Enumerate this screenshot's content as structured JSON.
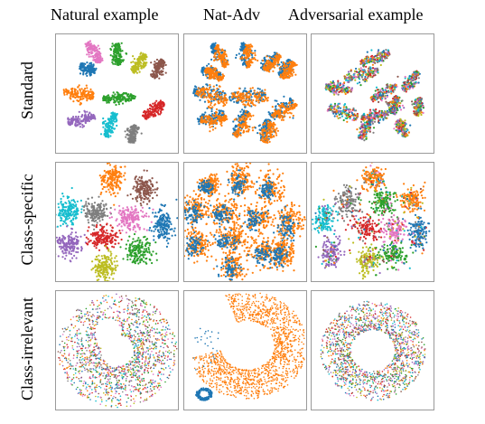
{
  "column_titles": [
    "Natural example",
    "Nat-Adv",
    "Adversarial example"
  ],
  "row_titles": [
    "Standard",
    "Class-specific",
    "Class-irrelevant"
  ],
  "colors": {
    "palette": [
      "#1f77b4",
      "#ff7f0e",
      "#2ca02c",
      "#d62728",
      "#9467bd",
      "#8c564b",
      "#e377c2",
      "#7f7f7f",
      "#bcbd22",
      "#17becf"
    ],
    "natural": "#1f77b4",
    "adversarial": "#ff7f0e",
    "panel_border": "#9a9a9a"
  }
}
